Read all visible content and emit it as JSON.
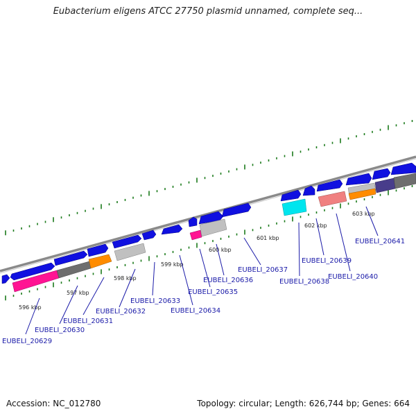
{
  "title": "Eubacterium eligens ATCC 27750 plasmid unnamed, complete seq...",
  "footer": {
    "accession": "Accession: NC_012780",
    "summary": "Topology: circular; Length: 626,744 bp; Genes: 664"
  },
  "colors": {
    "backbone": "#888888",
    "tick_green": "#1a7a1a",
    "cds_blue": "#1010e0",
    "label_blue": "#1a1aa8"
  },
  "kbp_ticks": [
    "596 kbp",
    "597 kbp",
    "598 kbp",
    "599 kbp",
    "600 kbp",
    "601 kbp",
    "602 kbp",
    "603 kbp"
  ],
  "genes": [
    "EUBELI_20629",
    "EUBELI_20630",
    "EUBELI_20631",
    "EUBELI_20632",
    "EUBELI_20633",
    "EUBELI_20634",
    "EUBELI_20635",
    "EUBELI_20636",
    "EUBELI_20637",
    "EUBELI_20638",
    "EUBELI_20639",
    "EUBELI_20640",
    "EUBELI_20641"
  ]
}
